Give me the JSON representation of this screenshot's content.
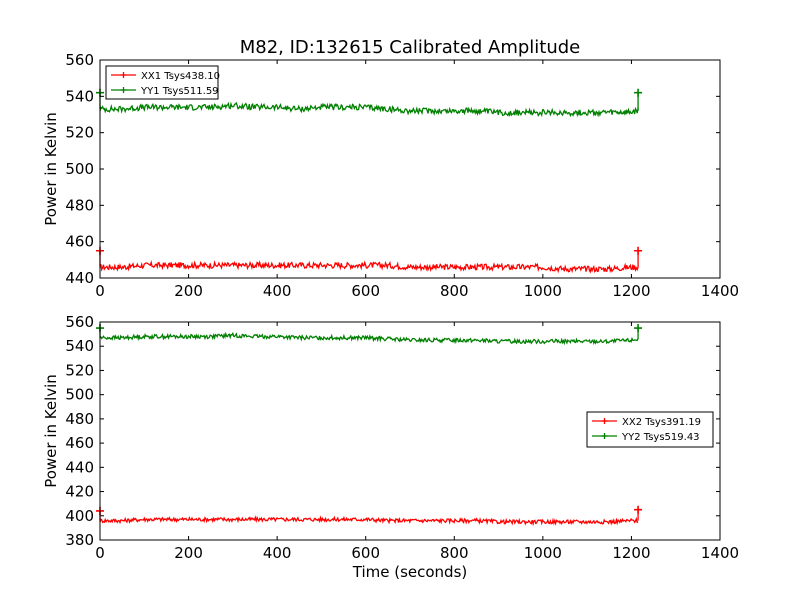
{
  "chart_data": [
    {
      "type": "line",
      "title": "M82, ID:132615 Calibrated Amplitude",
      "xlabel": "",
      "ylabel": "Power in Kelvin",
      "xlim": [
        0,
        1400
      ],
      "ylim": [
        440,
        560
      ],
      "x_ticks": [
        "0",
        "200",
        "400",
        "600",
        "800",
        "1000",
        "1200",
        "1400"
      ],
      "y_ticks": [
        "440",
        "460",
        "480",
        "500",
        "520",
        "540",
        "560"
      ],
      "legend_position": "top-left",
      "series": [
        {
          "name": "XX1 Tsys438.10",
          "color": "#ff0000",
          "x": [
            0,
            50,
            100,
            150,
            200,
            250,
            300,
            350,
            400,
            450,
            500,
            550,
            600,
            650,
            700,
            750,
            800,
            850,
            900,
            950,
            1000,
            1050,
            1100,
            1150,
            1200,
            1215
          ],
          "y": [
            446,
            446,
            447,
            447,
            447,
            447,
            447,
            447,
            447,
            447,
            447,
            447,
            447,
            447,
            446,
            446,
            446,
            446,
            446,
            446,
            446,
            445,
            445,
            445,
            446,
            446
          ],
          "spikes": [
            [
              0,
              455
            ],
            [
              1215,
              455
            ]
          ]
        },
        {
          "name": "YY1 Tsys511.59",
          "color": "#008000",
          "x": [
            0,
            50,
            100,
            150,
            200,
            250,
            300,
            350,
            400,
            450,
            500,
            550,
            600,
            650,
            700,
            750,
            800,
            850,
            900,
            950,
            1000,
            1050,
            1100,
            1150,
            1200,
            1215
          ],
          "y": [
            533,
            533,
            534,
            534,
            534,
            534,
            535,
            534,
            534,
            533,
            534,
            534,
            534,
            533,
            532,
            532,
            532,
            532,
            531,
            531,
            531,
            531,
            531,
            531,
            531,
            532
          ],
          "spikes": [
            [
              0,
              542
            ],
            [
              1215,
              542
            ]
          ]
        }
      ]
    },
    {
      "type": "line",
      "title": "",
      "xlabel": "Time (seconds)",
      "ylabel": "Power in Kelvin",
      "xlim": [
        0,
        1400
      ],
      "ylim": [
        380,
        560
      ],
      "x_ticks": [
        "0",
        "200",
        "400",
        "600",
        "800",
        "1000",
        "1200",
        "1400"
      ],
      "y_ticks": [
        "380",
        "400",
        "420",
        "440",
        "460",
        "480",
        "500",
        "520",
        "540",
        "560"
      ],
      "legend_position": "center-right",
      "series": [
        {
          "name": "XX2 Tsys391.19",
          "color": "#ff0000",
          "x": [
            0,
            50,
            100,
            150,
            200,
            250,
            300,
            350,
            400,
            450,
            500,
            550,
            600,
            650,
            700,
            750,
            800,
            850,
            900,
            950,
            1000,
            1050,
            1100,
            1150,
            1200,
            1215
          ],
          "y": [
            396,
            396,
            397,
            397,
            397,
            397,
            397,
            397,
            397,
            397,
            397,
            397,
            397,
            396,
            396,
            396,
            396,
            396,
            395,
            395,
            395,
            395,
            395,
            395,
            396,
            396
          ],
          "spikes": [
            [
              0,
              404
            ],
            [
              1215,
              405
            ]
          ]
        },
        {
          "name": "YY2 Tsys519.43",
          "color": "#008000",
          "x": [
            0,
            50,
            100,
            150,
            200,
            250,
            300,
            350,
            400,
            450,
            500,
            550,
            600,
            650,
            700,
            750,
            800,
            850,
            900,
            950,
            1000,
            1050,
            1100,
            1150,
            1200,
            1215
          ],
          "y": [
            547,
            547,
            548,
            548,
            548,
            548,
            549,
            548,
            548,
            547,
            547,
            547,
            547,
            546,
            545,
            545,
            545,
            545,
            544,
            544,
            544,
            544,
            544,
            544,
            545,
            546
          ],
          "spikes": [
            [
              0,
              555
            ],
            [
              1215,
              555
            ]
          ]
        }
      ]
    }
  ]
}
